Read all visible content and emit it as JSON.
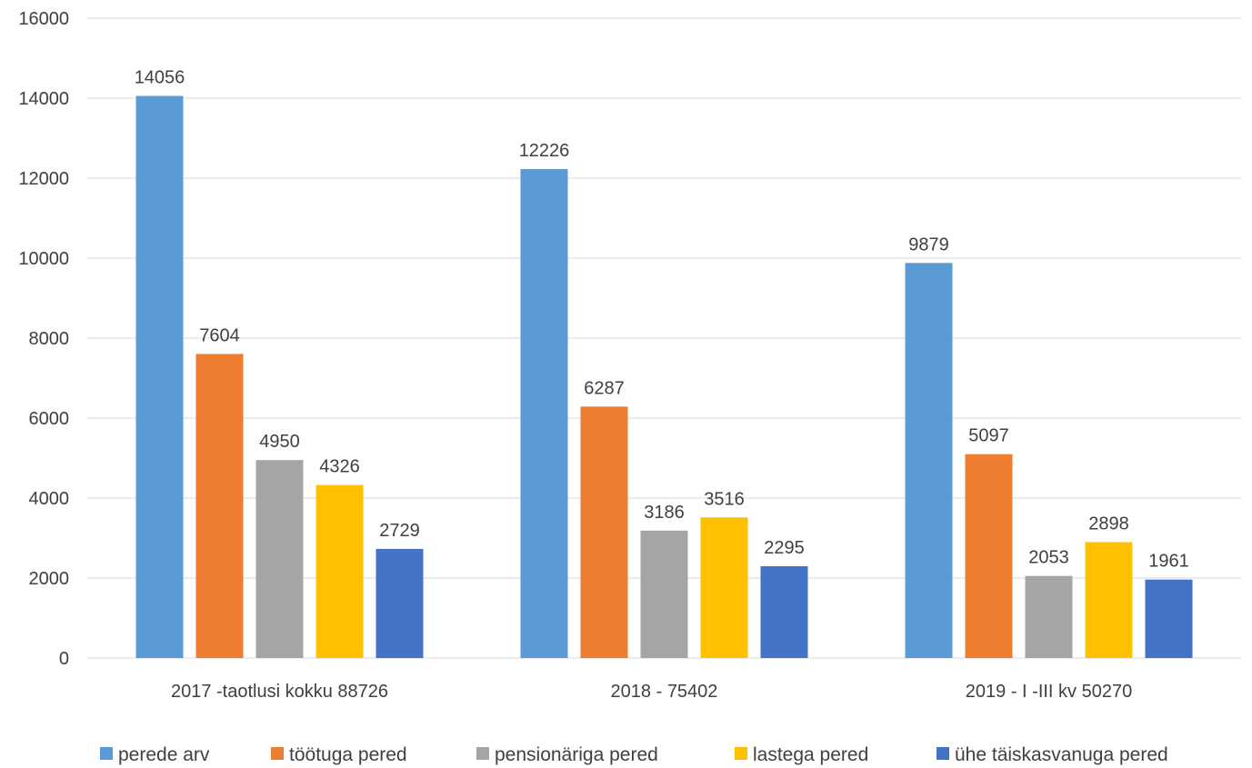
{
  "chart_data": {
    "type": "bar",
    "categories": [
      "2017 -taotlusi kokku 88726",
      "2018 - 75402",
      "2019 - I -III kv 50270"
    ],
    "series": [
      {
        "name": "perede arv",
        "color": "#5b9bd5",
        "values": [
          14056,
          12226,
          9879
        ]
      },
      {
        "name": "töötuga pered",
        "color": "#ed7d31",
        "values": [
          7604,
          6287,
          5097
        ]
      },
      {
        "name": "pensionäriga pered",
        "color": "#a5a5a5",
        "values": [
          4950,
          3186,
          2053
        ]
      },
      {
        "name": "lastega pered",
        "color": "#ffc000",
        "values": [
          4326,
          3516,
          2898
        ]
      },
      {
        "name": "ühe täiskasvanuga pered",
        "color": "#4472c4",
        "values": [
          2729,
          2295,
          1961
        ]
      }
    ],
    "ylim": [
      0,
      16000
    ],
    "yticks": [
      0,
      2000,
      4000,
      6000,
      8000,
      10000,
      12000,
      14000,
      16000
    ],
    "grid": true,
    "legend_position": "bottom",
    "data_labels": true
  }
}
